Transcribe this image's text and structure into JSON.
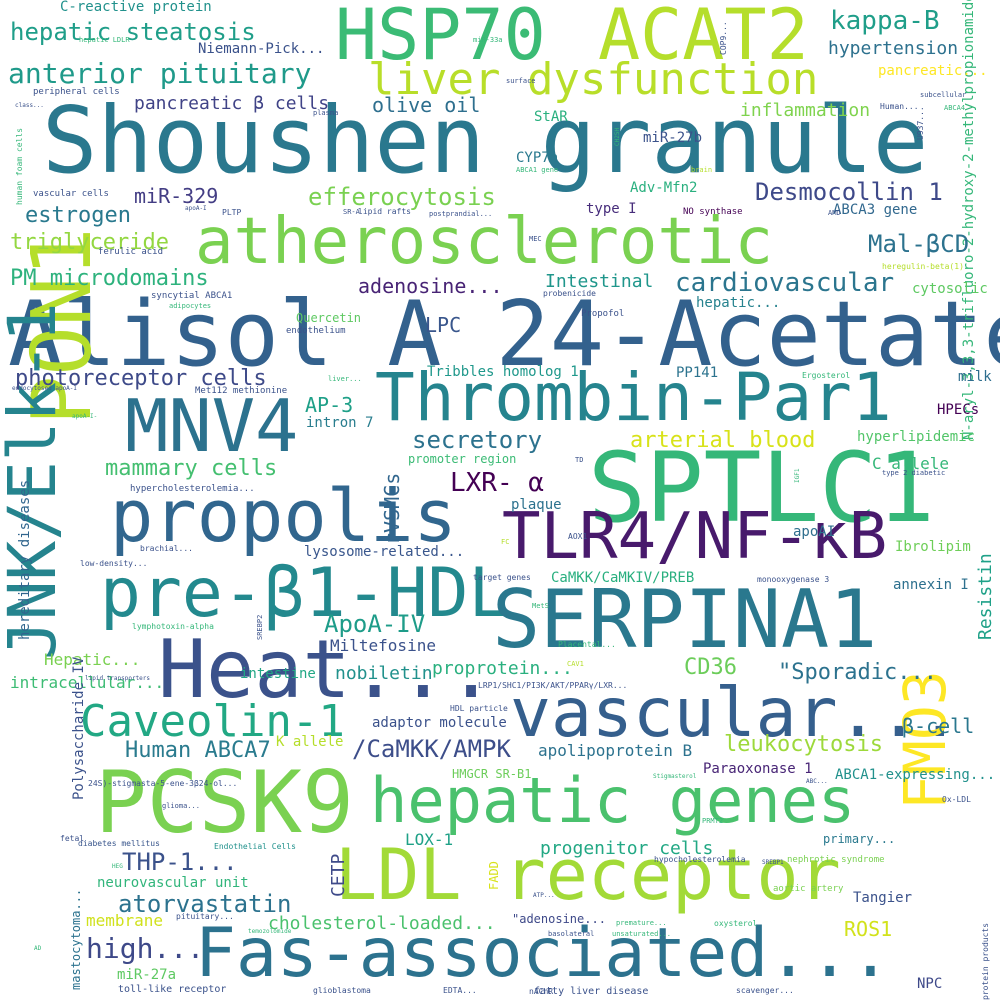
{
  "wordcloud": {
    "words": [
      {
        "text": "Shoushen granule",
        "color": "#2a788e"
      },
      {
        "text": "Alisol A 24-Acetate",
        "color": "#33618d"
      },
      {
        "text": "atherosclerotic",
        "color": "#7ad151"
      },
      {
        "text": "HSP70",
        "color": "#3bbb75"
      },
      {
        "text": "ACAT2",
        "color": "#b5de2b"
      },
      {
        "text": "liver dysfunction",
        "color": "#b8de29"
      },
      {
        "text": "Thrombin-Par1",
        "color": "#25848e"
      },
      {
        "text": "SPTLC1",
        "color": "#35b779"
      },
      {
        "text": "MNV4",
        "color": "#2c728e"
      },
      {
        "text": "propolis",
        "color": "#31668e"
      },
      {
        "text": "TLR4/NF-κB",
        "color": "#481a6c"
      },
      {
        "text": "pre-β1-HDL",
        "color": "#23898e"
      },
      {
        "text": "SERPINA1",
        "color": "#2a788e"
      },
      {
        "text": "Heat...",
        "color": "#3b528b"
      },
      {
        "text": "vascular...",
        "color": "#355f8d"
      },
      {
        "text": "Caveolin-1",
        "color": "#22a884"
      },
      {
        "text": "PCSK9",
        "color": "#7ad151"
      },
      {
        "text": "hepatic genes",
        "color": "#4ac16d"
      },
      {
        "text": "LDL receptor",
        "color": "#a2da37"
      },
      {
        "text": "Fas-associated...",
        "color": "#2c728e"
      },
      {
        "text": "PON1",
        "color": "#b5de2b"
      },
      {
        "text": "JNK/Elk-1",
        "color": "#25848e"
      },
      {
        "text": "FMO3",
        "color": "#fde725"
      },
      {
        "text": "N-aryl-3,3,3-trifluoro-2-hydroxy-2-methylpropionamides...",
        "color": "#35b779"
      },
      {
        "text": "C-reactive protein",
        "color": "#21918c"
      },
      {
        "text": "hepatic steatosis",
        "color": "#1f9e89"
      },
      {
        "text": "anterior pituitary",
        "color": "#1f9a8a"
      },
      {
        "text": "kappa-B",
        "color": "#1f9e89"
      },
      {
        "text": "hypertension",
        "color": "#2d718e"
      },
      {
        "text": "pancreatic β cells",
        "color": "#404387"
      },
      {
        "text": "olive oil",
        "color": "#2e6f8e"
      },
      {
        "text": "inflammation",
        "color": "#7fd34e"
      },
      {
        "text": "efferocytosis",
        "color": "#7ad151"
      },
      {
        "text": "Desmocollin 1",
        "color": "#3e4989"
      },
      {
        "text": "miR-329",
        "color": "#433d84"
      },
      {
        "text": "estrogen",
        "color": "#29798e"
      },
      {
        "text": "triglyceride",
        "color": "#93d741"
      },
      {
        "text": "Mal-βCD",
        "color": "#2c728e"
      },
      {
        "text": "PM microdomains",
        "color": "#2db27d"
      },
      {
        "text": "cardiovascular",
        "color": "#2b758e"
      },
      {
        "text": "adenosine...",
        "color": "#482475"
      },
      {
        "text": "Intestinal",
        "color": "#1f968b"
      },
      {
        "text": "LPC",
        "color": "#39568c"
      },
      {
        "text": "photoreceptor cells",
        "color": "#3e4a89"
      },
      {
        "text": "AP-3",
        "color": "#1fa088"
      },
      {
        "text": "intron 7",
        "color": "#287d8e"
      },
      {
        "text": "Tribbles homolog 1",
        "color": "#1f988b"
      },
      {
        "text": "PP141",
        "color": "#2c738e"
      },
      {
        "text": "secretory",
        "color": "#2c728e"
      },
      {
        "text": "arterial blood",
        "color": "#d8e219"
      },
      {
        "text": "hyperlipidemic",
        "color": "#52c569"
      },
      {
        "text": "mammary cells",
        "color": "#44bf70"
      },
      {
        "text": "LXR- α",
        "color": "#440154"
      },
      {
        "text": "rVSMCs",
        "color": "#31668e"
      },
      {
        "text": "plaque",
        "color": "#2c728e"
      },
      {
        "text": "apoAI",
        "color": "#2e6e8e"
      },
      {
        "text": "CaMKK/CaMKIV/PREB",
        "color": "#29af7f"
      },
      {
        "text": "ApoA-IV",
        "color": "#1e9c89"
      },
      {
        "text": "Miltefosine",
        "color": "#3b528b"
      },
      {
        "text": "\"Sporadic...",
        "color": "#2c728e"
      },
      {
        "text": "Resistin",
        "color": "#1fa188"
      },
      {
        "text": "proprotein...",
        "color": "#2ab07f"
      },
      {
        "text": "CD36",
        "color": "#6ccd5a"
      },
      {
        "text": "nobiletin",
        "color": "#21918c"
      },
      {
        "text": "intestine",
        "color": "#22a785"
      },
      {
        "text": "Hepatic...",
        "color": "#7ad151"
      },
      {
        "text": "intracellular...",
        "color": "#3dbc74"
      },
      {
        "text": "adaptor molecule",
        "color": "#3b528b"
      },
      {
        "text": "Human ABCA7",
        "color": "#2a7b8e"
      },
      {
        "text": "/CaMKK/AMPK",
        "color": "#3d4e8a"
      },
      {
        "text": "apolipoprotein B",
        "color": "#2c728e"
      },
      {
        "text": "leukocytosis",
        "color": "#9dd93b"
      },
      {
        "text": "β-cell",
        "color": "#2a778e"
      },
      {
        "text": "Paraoxonase 1",
        "color": "#482576"
      },
      {
        "text": "ABCA1-expressing...",
        "color": "#21918c"
      },
      {
        "text": "THP-1...",
        "color": "#3b528b"
      },
      {
        "text": "atorvastatin",
        "color": "#2c728e"
      },
      {
        "text": "progenitor cells",
        "color": "#22a884"
      },
      {
        "text": "CETP",
        "color": "#3e4a89"
      },
      {
        "text": "LOX-1",
        "color": "#1fa187"
      },
      {
        "text": "high...",
        "color": "#3e4989"
      },
      {
        "text": "cholesterol-loaded...",
        "color": "#4ac16d"
      },
      {
        "text": "ROS1",
        "color": "#d2e21b"
      },
      {
        "text": "Tangier",
        "color": "#3b528b"
      },
      {
        "text": "NPC",
        "color": "#3e4989"
      },
      {
        "text": "Polysaccharide IV",
        "color": "#3b528b"
      },
      {
        "text": "hereditary diseases",
        "color": "#31668e"
      },
      {
        "text": "Ibrolipim",
        "color": "#6ece58"
      },
      {
        "text": "C allele",
        "color": "#35b779"
      },
      {
        "text": "annexin I",
        "color": "#2d708e"
      },
      {
        "text": "membrane",
        "color": "#d0e11c"
      },
      {
        "text": "neurovascular unit",
        "color": "#31b57b"
      },
      {
        "text": "miR-27a",
        "color": "#5ec962"
      },
      {
        "text": "miR-27b",
        "color": "#3b528b"
      },
      {
        "text": "CYP7a",
        "color": "#29798e"
      },
      {
        "text": "StAR",
        "color": "#2ab07f"
      },
      {
        "text": "Adv-Mfn2",
        "color": "#2ab07f"
      },
      {
        "text": "type I",
        "color": "#472d7b"
      },
      {
        "text": "ABCA3 gene",
        "color": "#31688e"
      },
      {
        "text": "hepatic...",
        "color": "#26828e"
      },
      {
        "text": "cytosolic",
        "color": "#5ec962"
      },
      {
        "text": "milk",
        "color": "#2e6e8e"
      },
      {
        "text": "HPECs",
        "color": "#440154"
      },
      {
        "text": "K allele",
        "color": "#b5de2b"
      },
      {
        "text": "lysosome-related...",
        "color": "#39568c"
      },
      {
        "text": "Niemann-Pick...",
        "color": "#3b528b"
      },
      {
        "text": "pancreatic...",
        "color": "#fde725"
      },
      {
        "text": "Quercetin",
        "color": "#5ec962"
      },
      {
        "text": "promoter region",
        "color": "#3bbb75"
      },
      {
        "text": "HMGCR SR-B1",
        "color": "#6ccd5a"
      },
      {
        "text": "mastocytoma...",
        "color": "#2c728e"
      },
      {
        "text": "toll-like receptor",
        "color": "#3b528b"
      },
      {
        "text": "fatty liver disease",
        "color": "#3b528b"
      },
      {
        "text": "\"adenosine...",
        "color": "#3e4989"
      },
      {
        "text": "primary...",
        "color": "#29798e"
      },
      {
        "text": "nephrotic syndrome",
        "color": "#7ad151"
      },
      {
        "text": "hypocholesterolemia",
        "color": "#3b528b"
      },
      {
        "text": "aortic artery",
        "color": "#7ad151"
      },
      {
        "text": "diabetes mellitus",
        "color": "#39568c"
      },
      {
        "text": "Endothelial Cells",
        "color": "#21918c"
      },
      {
        "text": "hypercholesterolemia...",
        "color": "#3b528b"
      },
      {
        "text": "syncytial ABCA1",
        "color": "#3b528b"
      },
      {
        "text": "endothelium",
        "color": "#3b528b"
      },
      {
        "text": "peripheral cells",
        "color": "#3b528b"
      },
      {
        "text": "vascular cells",
        "color": "#3b528b"
      },
      {
        "text": "lipid rafts",
        "color": "#3b528b"
      },
      {
        "text": "ferulic acid",
        "color": "#3b528b"
      },
      {
        "text": "NO synthase",
        "color": "#440154"
      },
      {
        "text": "Propofol",
        "color": "#3b528b"
      },
      {
        "text": "Ergosterol",
        "color": "#35b779"
      },
      {
        "text": "heregulin-beta(1)",
        "color": "#b5de2b"
      },
      {
        "text": "probenicide",
        "color": "#3b528b"
      },
      {
        "text": "brachial...",
        "color": "#3b528b"
      },
      {
        "text": "low-density...",
        "color": "#3b528b"
      },
      {
        "text": "lymphotoxin-alpha",
        "color": "#35b779"
      },
      {
        "text": "target genes",
        "color": "#3b528b"
      },
      {
        "text": "AOX1",
        "color": "#3b528b"
      },
      {
        "text": "monooxygenase 3",
        "color": "#3b528b"
      },
      {
        "text": "HDL particle",
        "color": "#3b528b"
      },
      {
        "text": "LRP1/SHC1/PI3K/AKT/PPARγ/LXR...",
        "color": "#3b528b"
      },
      {
        "text": "Placental...",
        "color": "#35b779"
      },
      {
        "text": "CAV1",
        "color": "#b5de2b"
      },
      {
        "text": "Met112 methionine",
        "color": "#3b528b"
      },
      {
        "text": "liver...",
        "color": "#35b779"
      },
      {
        "text": "glioma...",
        "color": "#3b528b"
      },
      {
        "text": "fetal",
        "color": "#3b528b"
      },
      {
        "text": "24S)-stigmasta-5-ene-3β24-ol...",
        "color": "#3b528b"
      },
      {
        "text": "glioblastoma",
        "color": "#3b528b"
      },
      {
        "text": "EDTA...",
        "color": "#3b528b"
      },
      {
        "text": "nAChR",
        "color": "#3b528b"
      },
      {
        "text": "scavenger...",
        "color": "#3b528b"
      },
      {
        "text": "premature...",
        "color": "#35b779"
      },
      {
        "text": "oxysterol",
        "color": "#35b779"
      },
      {
        "text": "unsaturated...",
        "color": "#35b779"
      },
      {
        "text": "basolateral",
        "color": "#3b528b"
      },
      {
        "text": "pituitary...",
        "color": "#3b528b"
      },
      {
        "text": "temozolomide",
        "color": "#35b779"
      },
      {
        "text": "Ox-LDL",
        "color": "#3b528b"
      },
      {
        "text": "type 2 diabetic",
        "color": "#3b528b"
      },
      {
        "text": "Human...",
        "color": "#3b528b"
      },
      {
        "text": "subcellular",
        "color": "#3b528b"
      },
      {
        "text": "ABCA4",
        "color": "#35b779"
      },
      {
        "text": "U937...",
        "color": "#3b528b"
      },
      {
        "text": "COP9...",
        "color": "#3b528b"
      },
      {
        "text": "miR-33a",
        "color": "#35b779"
      },
      {
        "text": "surface",
        "color": "#3b528b"
      },
      {
        "text": "plasma",
        "color": "#3b528b"
      },
      {
        "text": "class...",
        "color": "#3b528b"
      },
      {
        "text": "hepatic LDLR",
        "color": "#35b779"
      },
      {
        "text": "human foam cells",
        "color": "#35b779"
      },
      {
        "text": "ABCA1 gene",
        "color": "#35b779"
      },
      {
        "text": "brain",
        "color": "#b5de2b"
      },
      {
        "text": "PLTP",
        "color": "#3b528b"
      },
      {
        "text": "apoA-I",
        "color": "#3b528b"
      },
      {
        "text": "SR-A",
        "color": "#3b528b"
      },
      {
        "text": "postprandial...",
        "color": "#3b528b"
      },
      {
        "text": "AMD",
        "color": "#3b528b"
      },
      {
        "text": "MEC",
        "color": "#3b528b"
      },
      {
        "text": "adipocytes",
        "color": "#35b779"
      },
      {
        "text": "endocytosed apoA-I",
        "color": "#3b528b"
      },
      {
        "text": "TD",
        "color": "#3b528b"
      },
      {
        "text": "IGF1",
        "color": "#35b779"
      },
      {
        "text": "FC",
        "color": "#b5de2b"
      },
      {
        "text": "MetS",
        "color": "#35b779"
      },
      {
        "text": "SREBP2",
        "color": "#3b528b"
      },
      {
        "text": "lipid transporters",
        "color": "#3b528b"
      },
      {
        "text": "Stigmasterol",
        "color": "#35b779"
      },
      {
        "text": "ABC...",
        "color": "#3b528b"
      },
      {
        "text": "PRMT2",
        "color": "#35b779"
      },
      {
        "text": "SREBP1",
        "color": "#3b528b"
      },
      {
        "text": "ATP...",
        "color": "#3b528b"
      },
      {
        "text": "FADD",
        "color": "#d8e219"
      },
      {
        "text": "HEG",
        "color": "#35b779"
      },
      {
        "text": "AD",
        "color": "#35b779"
      },
      {
        "text": "protein products",
        "color": "#3b528b"
      },
      {
        "text": "apoA-I-",
        "color": "#35b779"
      },
      {
        "text": "CH25H",
        "color": "#35b779"
      }
    ]
  }
}
